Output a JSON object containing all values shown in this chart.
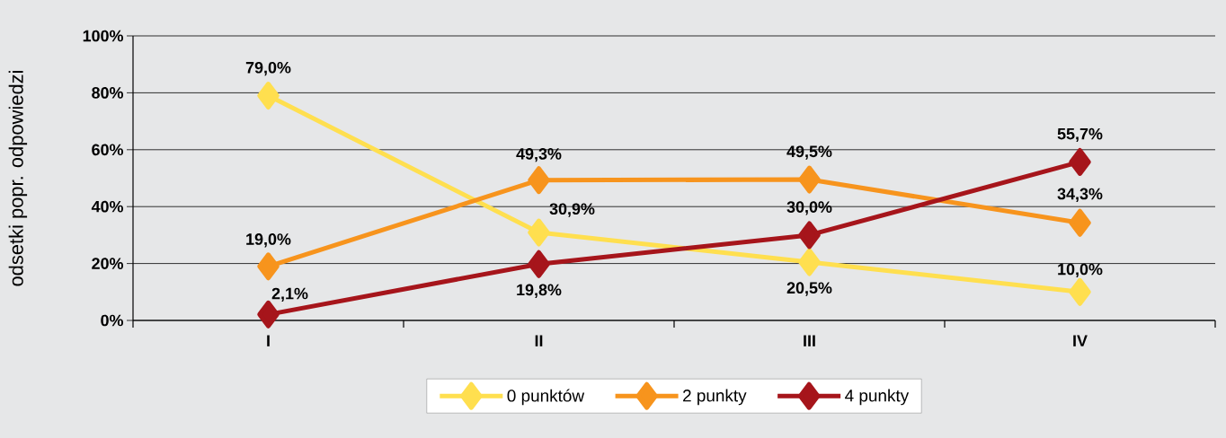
{
  "chart_data": {
    "type": "line",
    "ylabel": "odsetki popr. odpowiedzi",
    "categories": [
      "I",
      "II",
      "III",
      "IV"
    ],
    "ylim": [
      0,
      100
    ],
    "yticks": [
      {
        "value": 0,
        "label": "0%"
      },
      {
        "value": 20,
        "label": "20%"
      },
      {
        "value": 40,
        "label": "40%"
      },
      {
        "value": 60,
        "label": "60%"
      },
      {
        "value": 80,
        "label": "80%"
      },
      {
        "value": 100,
        "label": "100%"
      }
    ],
    "grid": "y",
    "legend": "bottom",
    "marker": "diamond",
    "series": [
      {
        "name": "0 punktów",
        "color": "#ffdf4f",
        "values": [
          79.0,
          30.9,
          20.5,
          10.0
        ],
        "value_labels": [
          "79,0%",
          "30,9%",
          "20,5%",
          "10,0%"
        ]
      },
      {
        "name": "2 punkty",
        "color": "#f7941d",
        "values": [
          19.0,
          49.3,
          49.5,
          34.3
        ],
        "value_labels": [
          "19,0%",
          "49,3%",
          "49,5%",
          "34,3%"
        ]
      },
      {
        "name": "4 punkty",
        "color": "#a6151b",
        "values": [
          2.1,
          19.8,
          30.0,
          55.7
        ],
        "value_labels": [
          "2,1%",
          "19,8%",
          "30,0%",
          "55,7%"
        ]
      }
    ]
  }
}
